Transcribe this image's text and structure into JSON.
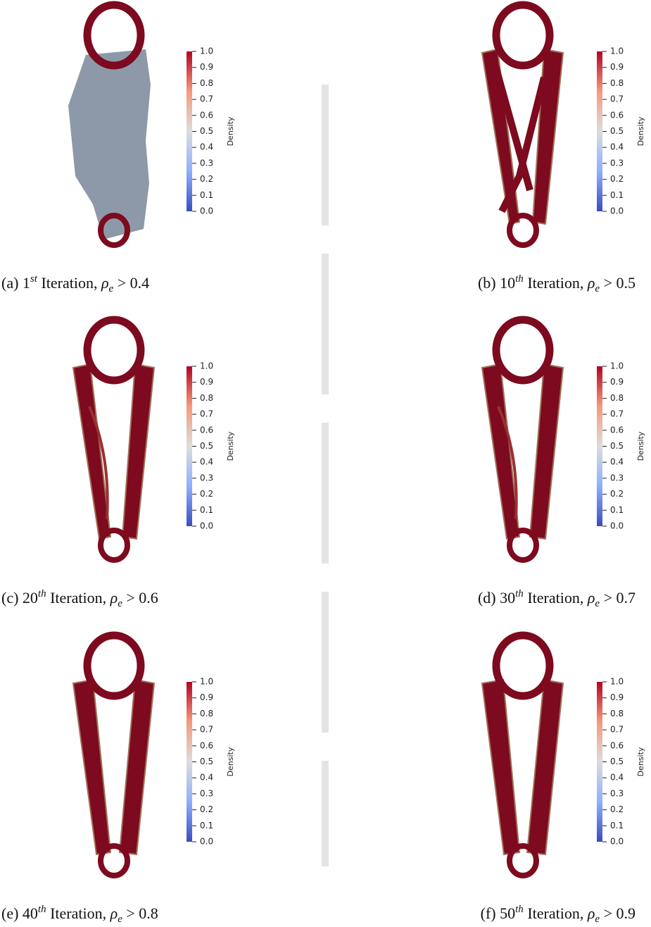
{
  "colorbar": {
    "label": "Density",
    "ticks": [
      "1.0",
      "0.9",
      "0.8",
      "0.7",
      "0.6",
      "0.5",
      "0.4",
      "0.3",
      "0.2",
      "0.1",
      "0.0"
    ]
  },
  "caption_word": "Iteration,",
  "symbol": "ρ",
  "subscript": "e",
  "relation": ">",
  "panels": [
    {
      "label": "(a)",
      "ordinal": "1",
      "suffix": "st",
      "threshold": "0.4"
    },
    {
      "label": "(b)",
      "ordinal": "10",
      "suffix": "th",
      "threshold": "0.5"
    },
    {
      "label": "(c)",
      "ordinal": "20",
      "suffix": "th",
      "threshold": "0.6"
    },
    {
      "label": "(d)",
      "ordinal": "30",
      "suffix": "th",
      "threshold": "0.7"
    },
    {
      "label": "(e)",
      "ordinal": "40",
      "suffix": "th",
      "threshold": "0.8"
    },
    {
      "label": "(f)",
      "ordinal": "50",
      "suffix": "th",
      "threshold": "0.9"
    }
  ]
}
